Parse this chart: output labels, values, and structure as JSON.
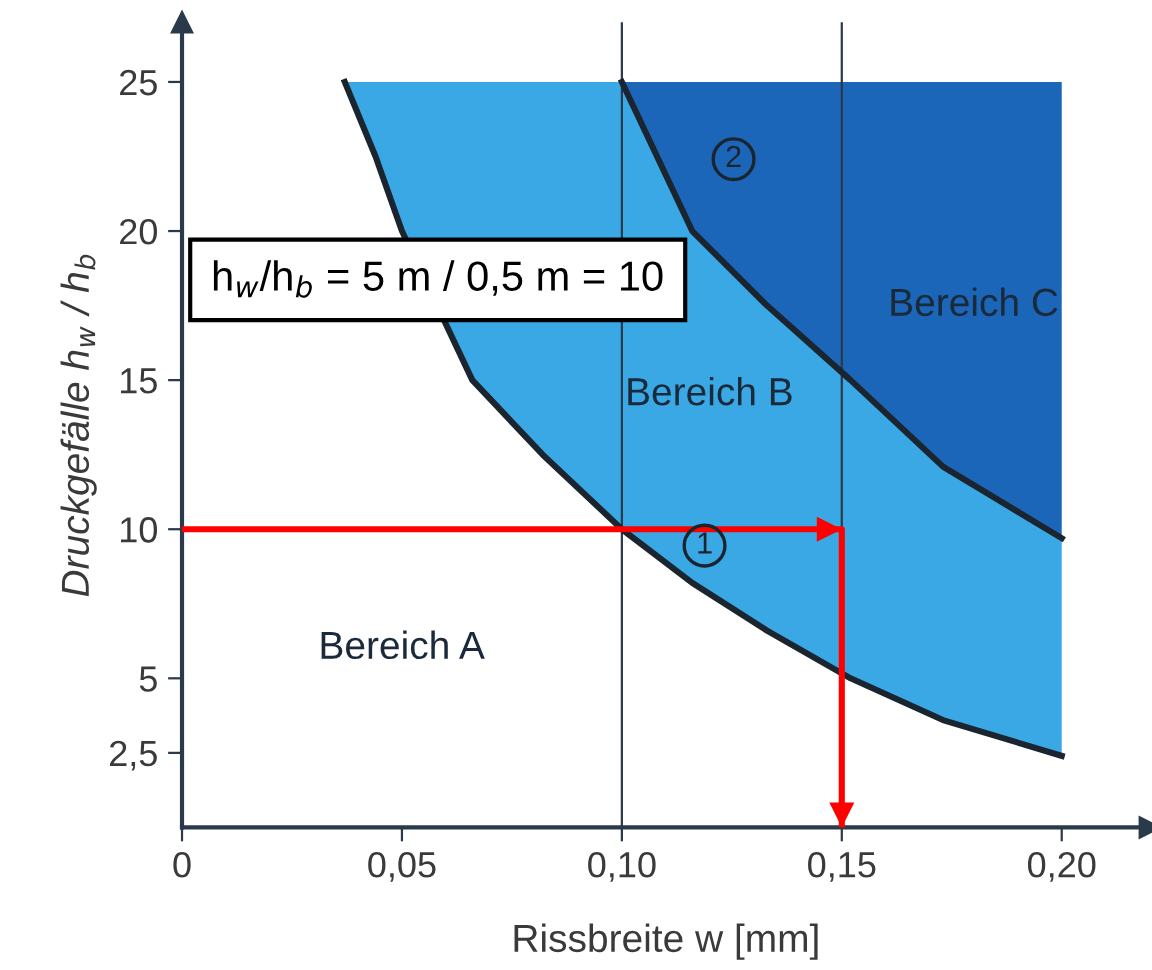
{
  "chart_data": {
    "type": "line",
    "xlabel": "Rissbreite w [mm]",
    "ylabel": "Druckgefälle h$_{w}$ / h$_{b}$",
    "xlim": [
      0,
      0.22
    ],
    "ylim": [
      0,
      27
    ],
    "xticks": [
      {
        "value": 0,
        "label": "0"
      },
      {
        "value": 0.05,
        "label": "0,05"
      },
      {
        "value": 0.1,
        "label": "0,10"
      },
      {
        "value": 0.15,
        "label": "0,15"
      },
      {
        "value": 0.2,
        "label": "0,20"
      }
    ],
    "yticks": [
      {
        "value": 2.5,
        "label": "2,5"
      },
      5,
      10,
      15,
      20,
      25
    ],
    "grid": false,
    "series": [
      {
        "color": "#1a2530",
        "x": [
          0.037,
          0.044,
          0.05,
          0.066,
          0.082,
          0.1,
          0.116,
          0.133,
          0.152,
          0.173,
          0.2
        ],
        "values": [
          25,
          22.5,
          20,
          15,
          12.5,
          10,
          8.2,
          6.6,
          5,
          3.6,
          2.4
        ],
        "lower": [
          25,
          22.5,
          20,
          15,
          12.5,
          10,
          8.2,
          6.6,
          5,
          3.6,
          2.4
        ],
        "upper": [
          25,
          25,
          25,
          25,
          25,
          25,
          20,
          17.5,
          15,
          12.1,
          9.7
        ]
      },
      {
        "color": "#1a2530",
        "x": [
          0.1,
          0.108,
          0.116,
          0.133,
          0.152,
          0.173,
          0.2
        ],
        "values": [
          25,
          22.5,
          20,
          17.5,
          15,
          12.1,
          9.7
        ],
        "lower": [
          25,
          22.5,
          20,
          17.5,
          15,
          12.1,
          9.7
        ],
        "upper": [
          25,
          25,
          25,
          25,
          25,
          25,
          25
        ]
      },
      {
        "color": "#ff0000",
        "x": [
          0,
          0.15,
          0.15
        ],
        "values": [
          10,
          10,
          0
        ]
      }
    ],
    "ref_lines": [
      {
        "axis": "x",
        "value": 0.1,
        "color": "#2a3a4a"
      },
      {
        "axis": "x",
        "value": 0.15,
        "color": "#2a3a4a"
      }
    ],
    "annotations": [
      "h$_{w}$/h$_{b}$ = 5 m / 0,5 m = 10",
      "Bereich A",
      "Bereich B",
      "Bereich C",
      "1",
      "2"
    ]
  }
}
